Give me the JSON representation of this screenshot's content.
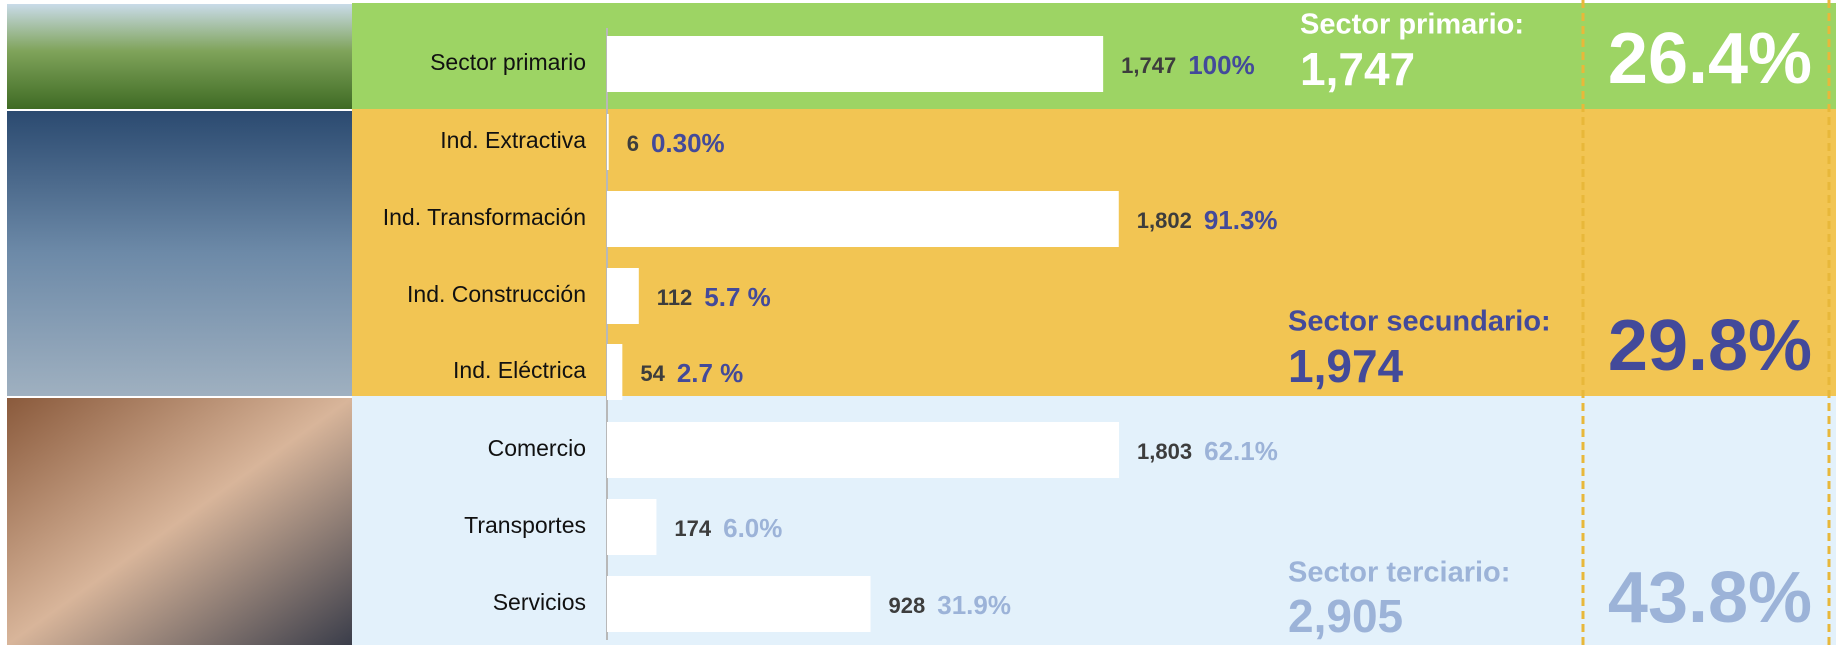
{
  "chart_data": {
    "type": "bar",
    "categories": [
      "Sector primario",
      "Ind. Extractiva",
      "Ind. Transformación",
      "Ind. Construcción",
      "Ind. Eléctrica",
      "Comercio",
      "Transportes",
      "Servicios"
    ],
    "values": [
      1747,
      6,
      1802,
      112,
      54,
      1803,
      174,
      928
    ],
    "value_labels": [
      "1,747",
      "6",
      "1,802",
      "112",
      "54",
      "1,803",
      "174",
      "928"
    ],
    "shares": [
      100,
      0.3,
      91.3,
      5.7,
      2.7,
      62.1,
      6.0,
      31.9
    ],
    "share_labels": [
      "100%",
      "0.30%",
      "91.3%",
      "5.7 %",
      "2.7 %",
      "62.1%",
      "6.0%",
      "31.9%"
    ],
    "color": "#ffffff",
    "xlim": [
      0,
      2000
    ],
    "sectors": [
      {
        "name": "Sector primario:",
        "total": 1747,
        "total_label": "1,747",
        "share": 26.4,
        "share_label": "26.4%",
        "rows": [
          0,
          0
        ],
        "background": "#9dd464",
        "color": "#ffffff",
        "share_color": "#434a9a"
      },
      {
        "name": "Sector secundario:",
        "total": 1974,
        "total_label": "1,974",
        "share": 29.8,
        "share_label": "29.8%",
        "rows": [
          1,
          4
        ],
        "background": "#f2c553",
        "color": "#434a9a",
        "share_color": "#434a9a"
      },
      {
        "name": "Sector terciario:",
        "total": 2905,
        "total_label": "2,905",
        "share": 43.8,
        "share_label": "43.8%",
        "rows": [
          5,
          7
        ],
        "background": "#e3f1fb",
        "color": "#9cb3d8",
        "share_color": "#9cb3d8"
      }
    ]
  }
}
